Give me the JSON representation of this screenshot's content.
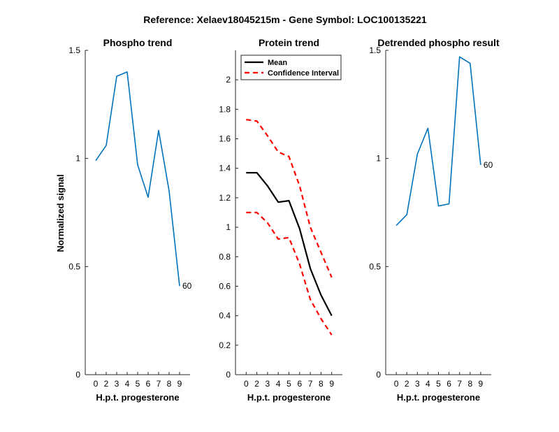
{
  "figure": {
    "suptitle": "Reference:  Xelaev18045215m - Gene Symbol:  LOC100135221",
    "ylabel": "Normalized signal",
    "colors": {
      "phospho": "#0072BD",
      "mean": "#000000",
      "ci": "#FF0000"
    }
  },
  "chart_data": [
    {
      "type": "line",
      "title": "Phospho trend",
      "xlabel": "H.p.t. progesterone",
      "ylabel": "Normalized signal",
      "categories": [
        "0",
        "2",
        "3",
        "4",
        "5",
        "6",
        "7",
        "8",
        "9"
      ],
      "ylim": [
        0,
        1.5
      ],
      "yticks": [
        "0",
        "0.5",
        "1",
        "1.5"
      ],
      "series": [
        {
          "name": "Phospho",
          "values": [
            0.99,
            1.06,
            1.38,
            1.4,
            0.97,
            0.82,
            1.13,
            0.85,
            0.41
          ]
        }
      ],
      "annotation": "60"
    },
    {
      "type": "line",
      "title": "Protein trend",
      "xlabel": "H.p.t. progesterone",
      "categories": [
        "0",
        "2",
        "3",
        "4",
        "5",
        "6",
        "7",
        "8",
        "9"
      ],
      "ylim": [
        0,
        2.2
      ],
      "yticks": [
        "0",
        "0.2",
        "0.4",
        "0.6",
        "0.8",
        "1",
        "1.2",
        "1.4",
        "1.6",
        "1.8",
        "2"
      ],
      "legend": [
        "Mean",
        "Confidence Interval"
      ],
      "series": [
        {
          "name": "Mean",
          "values": [
            1.37,
            1.37,
            1.28,
            1.17,
            1.18,
            0.99,
            0.72,
            0.54,
            0.4
          ]
        },
        {
          "name": "CI Upper",
          "values": [
            1.73,
            1.72,
            1.62,
            1.51,
            1.48,
            1.28,
            1.0,
            0.83,
            0.66
          ]
        },
        {
          "name": "CI Lower",
          "values": [
            1.1,
            1.1,
            1.03,
            0.92,
            0.93,
            0.75,
            0.51,
            0.38,
            0.27
          ]
        }
      ]
    },
    {
      "type": "line",
      "title": "Detrended phospho result",
      "xlabel": "H.p.t. progesterone",
      "categories": [
        "0",
        "2",
        "3",
        "4",
        "5",
        "6",
        "7",
        "8",
        "9"
      ],
      "ylim": [
        0,
        1.5
      ],
      "yticks": [
        "0",
        "0.5",
        "1",
        "1.5"
      ],
      "series": [
        {
          "name": "Detrended",
          "values": [
            0.69,
            0.74,
            1.02,
            1.14,
            0.78,
            0.79,
            1.47,
            1.44,
            0.97
          ]
        }
      ],
      "annotation": "60"
    }
  ]
}
